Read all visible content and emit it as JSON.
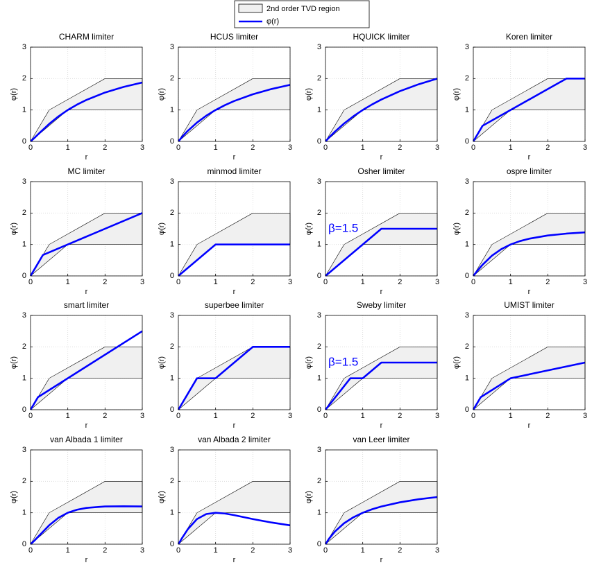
{
  "legend": {
    "entries": [
      {
        "name": "2nd order TVD region",
        "color": "#f0f0f0"
      },
      {
        "name": "φ(r)",
        "color": "#0000ff"
      }
    ]
  },
  "chart_data": [
    {
      "type": "line",
      "title": "CHARM limiter",
      "xlabel": "r",
      "ylabel": "φ(r)",
      "xlim": [
        0,
        3
      ],
      "ylim": [
        0,
        3
      ],
      "xticks": [
        0,
        1,
        2,
        3
      ],
      "yticks": [
        0,
        1,
        2,
        3
      ],
      "grid": true,
      "region": {
        "x": [
          0,
          0.5,
          2,
          3,
          3,
          1,
          0
        ],
        "y": [
          0,
          1,
          2,
          2,
          1,
          1,
          0
        ]
      },
      "series": [
        {
          "color": "#0000ff",
          "x": [
            0,
            0.1,
            0.25,
            0.5,
            0.75,
            1,
            1.25,
            1.5,
            2,
            2.5,
            3
          ],
          "values": [
            0,
            0.107,
            0.28,
            0.556,
            0.796,
            1,
            1.173,
            1.32,
            1.556,
            1.735,
            1.875
          ]
        }
      ]
    },
    {
      "type": "line",
      "title": "HCUS limiter",
      "xlabel": "r",
      "ylabel": "φ(r)",
      "xlim": [
        0,
        3
      ],
      "ylim": [
        0,
        3
      ],
      "xticks": [
        0,
        1,
        2,
        3
      ],
      "yticks": [
        0,
        1,
        2,
        3
      ],
      "grid": true,
      "region": {
        "x": [
          0,
          0.5,
          2,
          3,
          3,
          1,
          0
        ],
        "y": [
          0,
          1,
          2,
          2,
          1,
          1,
          0
        ]
      },
      "series": [
        {
          "color": "#0000ff",
          "x": [
            0,
            0.1,
            0.25,
            0.5,
            0.75,
            1,
            1.25,
            1.5,
            2,
            2.5,
            3
          ],
          "values": [
            0,
            0.143,
            0.333,
            0.6,
            0.818,
            1,
            1.154,
            1.286,
            1.5,
            1.667,
            1.8
          ]
        }
      ]
    },
    {
      "type": "line",
      "title": "HQUICK limiter",
      "xlabel": "r",
      "ylabel": "φ(r)",
      "xlim": [
        0,
        3
      ],
      "ylim": [
        0,
        3
      ],
      "xticks": [
        0,
        1,
        2,
        3
      ],
      "yticks": [
        0,
        1,
        2,
        3
      ],
      "grid": true,
      "region": {
        "x": [
          0,
          0.5,
          2,
          3,
          3,
          1,
          0
        ],
        "y": [
          0,
          1,
          2,
          2,
          1,
          1,
          0
        ]
      },
      "series": [
        {
          "color": "#0000ff",
          "x": [
            0,
            0.1,
            0.25,
            0.5,
            0.75,
            1,
            1.25,
            1.5,
            2,
            2.5,
            3
          ],
          "values": [
            0,
            0.129,
            0.308,
            0.571,
            0.8,
            1,
            1.176,
            1.333,
            1.6,
            1.818,
            2
          ]
        }
      ]
    },
    {
      "type": "line",
      "title": "Koren limiter",
      "xlabel": "r",
      "ylabel": "φ(r)",
      "xlim": [
        0,
        3
      ],
      "ylim": [
        0,
        3
      ],
      "xticks": [
        0,
        1,
        2,
        3
      ],
      "yticks": [
        0,
        1,
        2,
        3
      ],
      "grid": true,
      "region": {
        "x": [
          0,
          0.5,
          2,
          3,
          3,
          1,
          0
        ],
        "y": [
          0,
          1,
          2,
          2,
          1,
          1,
          0
        ]
      },
      "series": [
        {
          "color": "#0000ff",
          "x": [
            0,
            0.25,
            2.5,
            3
          ],
          "values": [
            0,
            0.5,
            2,
            2
          ]
        }
      ]
    },
    {
      "type": "line",
      "title": "MC limiter",
      "xlabel": "r",
      "ylabel": "φ(r)",
      "xlim": [
        0,
        3
      ],
      "ylim": [
        0,
        3
      ],
      "xticks": [
        0,
        1,
        2,
        3
      ],
      "yticks": [
        0,
        1,
        2,
        3
      ],
      "grid": true,
      "region": {
        "x": [
          0,
          0.5,
          2,
          3,
          3,
          1,
          0
        ],
        "y": [
          0,
          1,
          2,
          2,
          1,
          1,
          0
        ]
      },
      "series": [
        {
          "color": "#0000ff",
          "x": [
            0,
            0.333,
            3
          ],
          "values": [
            0,
            0.667,
            2
          ]
        }
      ]
    },
    {
      "type": "line",
      "title": "minmod limiter",
      "xlabel": "r",
      "ylabel": "φ(r)",
      "xlim": [
        0,
        3
      ],
      "ylim": [
        0,
        3
      ],
      "xticks": [
        0,
        1,
        2,
        3
      ],
      "yticks": [
        0,
        1,
        2,
        3
      ],
      "grid": true,
      "region": {
        "x": [
          0,
          0.5,
          2,
          3,
          3,
          1,
          0
        ],
        "y": [
          0,
          1,
          2,
          2,
          1,
          1,
          0
        ]
      },
      "series": [
        {
          "color": "#0000ff",
          "x": [
            0,
            1,
            3
          ],
          "values": [
            0,
            1,
            1
          ]
        }
      ]
    },
    {
      "type": "line",
      "title": "Osher limiter",
      "xlabel": "r",
      "ylabel": "φ(r)",
      "xlim": [
        0,
        3
      ],
      "ylim": [
        0,
        3
      ],
      "xticks": [
        0,
        1,
        2,
        3
      ],
      "yticks": [
        0,
        1,
        2,
        3
      ],
      "grid": true,
      "annotation": "β=1.5",
      "region": {
        "x": [
          0,
          0.5,
          2,
          3,
          3,
          1,
          0
        ],
        "y": [
          0,
          1,
          2,
          2,
          1,
          1,
          0
        ]
      },
      "series": [
        {
          "color": "#0000ff",
          "x": [
            0,
            1.5,
            3
          ],
          "values": [
            0,
            1.5,
            1.5
          ]
        }
      ]
    },
    {
      "type": "line",
      "title": "ospre limiter",
      "xlabel": "r",
      "ylabel": "φ(r)",
      "xlim": [
        0,
        3
      ],
      "ylim": [
        0,
        3
      ],
      "xticks": [
        0,
        1,
        2,
        3
      ],
      "yticks": [
        0,
        1,
        2,
        3
      ],
      "grid": true,
      "region": {
        "x": [
          0,
          0.5,
          2,
          3,
          3,
          1,
          0
        ],
        "y": [
          0,
          1,
          2,
          2,
          1,
          1,
          0
        ]
      },
      "series": [
        {
          "color": "#0000ff",
          "x": [
            0,
            0.1,
            0.25,
            0.5,
            0.75,
            1,
            1.25,
            1.5,
            2,
            2.5,
            3
          ],
          "values": [
            0,
            0.149,
            0.357,
            0.643,
            0.851,
            1,
            1.107,
            1.184,
            1.286,
            1.346,
            1.385
          ]
        }
      ]
    },
    {
      "type": "line",
      "title": "smart limiter",
      "xlabel": "r",
      "ylabel": "φ(r)",
      "xlim": [
        0,
        3
      ],
      "ylim": [
        0,
        3
      ],
      "xticks": [
        0,
        1,
        2,
        3
      ],
      "yticks": [
        0,
        1,
        2,
        3
      ],
      "grid": true,
      "region": {
        "x": [
          0,
          0.5,
          2,
          3,
          3,
          1,
          0
        ],
        "y": [
          0,
          1,
          2,
          2,
          1,
          1,
          0
        ]
      },
      "series": [
        {
          "color": "#0000ff",
          "x": [
            0,
            0.2,
            3
          ],
          "values": [
            0,
            0.4,
            2.5
          ]
        }
      ]
    },
    {
      "type": "line",
      "title": "superbee limiter",
      "xlabel": "r",
      "ylabel": "φ(r)",
      "xlim": [
        0,
        3
      ],
      "ylim": [
        0,
        3
      ],
      "xticks": [
        0,
        1,
        2,
        3
      ],
      "yticks": [
        0,
        1,
        2,
        3
      ],
      "grid": true,
      "region": {
        "x": [
          0,
          0.5,
          2,
          3,
          3,
          1,
          0
        ],
        "y": [
          0,
          1,
          2,
          2,
          1,
          1,
          0
        ]
      },
      "series": [
        {
          "color": "#0000ff",
          "x": [
            0,
            0.5,
            1,
            2,
            3
          ],
          "values": [
            0,
            1,
            1,
            2,
            2
          ]
        }
      ]
    },
    {
      "type": "line",
      "title": "Sweby limiter",
      "xlabel": "r",
      "ylabel": "φ(r)",
      "xlim": [
        0,
        3
      ],
      "ylim": [
        0,
        3
      ],
      "xticks": [
        0,
        1,
        2,
        3
      ],
      "yticks": [
        0,
        1,
        2,
        3
      ],
      "grid": true,
      "annotation": "β=1.5",
      "region": {
        "x": [
          0,
          0.5,
          2,
          3,
          3,
          1,
          0
        ],
        "y": [
          0,
          1,
          2,
          2,
          1,
          1,
          0
        ]
      },
      "series": [
        {
          "color": "#0000ff",
          "x": [
            0,
            0.667,
            1,
            1.5,
            3
          ],
          "values": [
            0,
            1,
            1,
            1.5,
            1.5
          ]
        }
      ]
    },
    {
      "type": "line",
      "title": "UMIST limiter",
      "xlabel": "r",
      "ylabel": "φ(r)",
      "xlim": [
        0,
        3
      ],
      "ylim": [
        0,
        3
      ],
      "xticks": [
        0,
        1,
        2,
        3
      ],
      "yticks": [
        0,
        1,
        2,
        3
      ],
      "grid": true,
      "region": {
        "x": [
          0,
          0.5,
          2,
          3,
          3,
          1,
          0
        ],
        "y": [
          0,
          1,
          2,
          2,
          1,
          1,
          0
        ]
      },
      "series": [
        {
          "color": "#0000ff",
          "x": [
            0,
            0.2,
            1,
            3
          ],
          "values": [
            0,
            0.4,
            1,
            1.5
          ]
        }
      ]
    },
    {
      "type": "line",
      "title": "van Albada 1 limiter",
      "xlabel": "r",
      "ylabel": "φ(r)",
      "xlim": [
        0,
        3
      ],
      "ylim": [
        0,
        3
      ],
      "xticks": [
        0,
        1,
        2,
        3
      ],
      "yticks": [
        0,
        1,
        2,
        3
      ],
      "grid": true,
      "region": {
        "x": [
          0,
          0.5,
          2,
          3,
          3,
          1,
          0
        ],
        "y": [
          0,
          1,
          2,
          2,
          1,
          1,
          0
        ]
      },
      "series": [
        {
          "color": "#0000ff",
          "x": [
            0,
            0.1,
            0.25,
            0.5,
            0.75,
            1,
            1.25,
            1.5,
            2,
            2.5,
            3
          ],
          "values": [
            0,
            0.109,
            0.294,
            0.6,
            0.84,
            1,
            1.098,
            1.154,
            1.2,
            1.207,
            1.2
          ]
        }
      ]
    },
    {
      "type": "line",
      "title": "van Albada 2 limiter",
      "xlabel": "r",
      "ylabel": "φ(r)",
      "xlim": [
        0,
        3
      ],
      "ylim": [
        0,
        3
      ],
      "xticks": [
        0,
        1,
        2,
        3
      ],
      "yticks": [
        0,
        1,
        2,
        3
      ],
      "grid": true,
      "region": {
        "x": [
          0,
          0.5,
          2,
          3,
          3,
          1,
          0
        ],
        "y": [
          0,
          1,
          2,
          2,
          1,
          1,
          0
        ]
      },
      "series": [
        {
          "color": "#0000ff",
          "x": [
            0,
            0.1,
            0.25,
            0.5,
            0.75,
            1,
            1.25,
            1.5,
            2,
            2.5,
            3
          ],
          "values": [
            0,
            0.198,
            0.471,
            0.8,
            0.96,
            1,
            0.976,
            0.923,
            0.8,
            0.69,
            0.6
          ]
        }
      ]
    },
    {
      "type": "line",
      "title": "van Leer limiter",
      "xlabel": "r",
      "ylabel": "φ(r)",
      "xlim": [
        0,
        3
      ],
      "ylim": [
        0,
        3
      ],
      "xticks": [
        0,
        1,
        2,
        3
      ],
      "yticks": [
        0,
        1,
        2,
        3
      ],
      "grid": true,
      "region": {
        "x": [
          0,
          0.5,
          2,
          3,
          3,
          1,
          0
        ],
        "y": [
          0,
          1,
          2,
          2,
          1,
          1,
          0
        ]
      },
      "series": [
        {
          "color": "#0000ff",
          "x": [
            0,
            0.1,
            0.25,
            0.5,
            0.75,
            1,
            1.25,
            1.5,
            2,
            2.5,
            3
          ],
          "values": [
            0,
            0.182,
            0.4,
            0.667,
            0.857,
            1,
            1.111,
            1.2,
            1.333,
            1.429,
            1.5
          ]
        }
      ]
    }
  ]
}
